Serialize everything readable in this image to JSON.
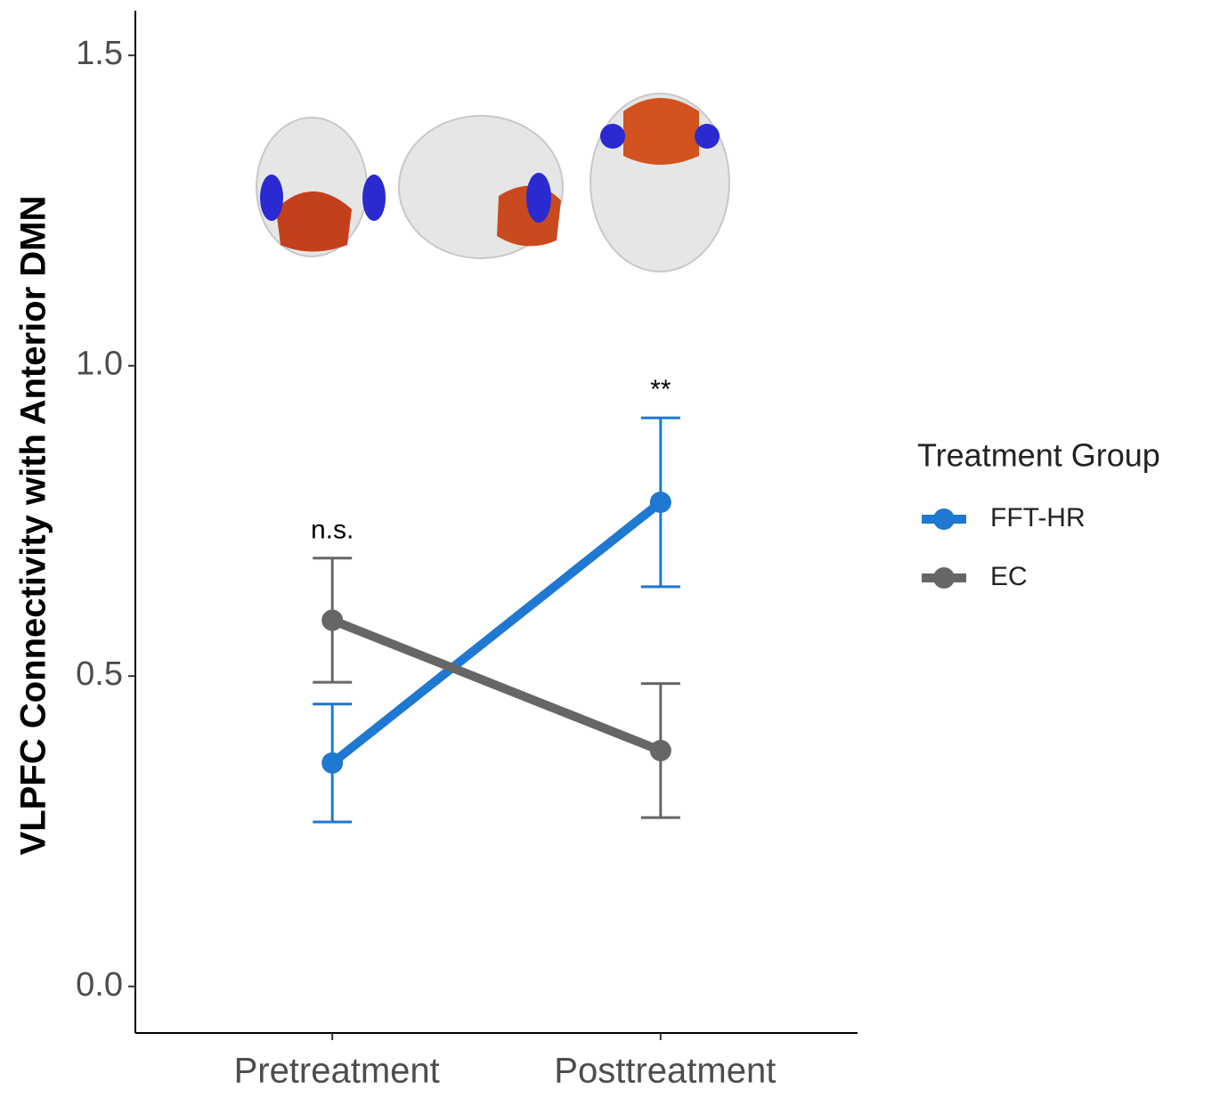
{
  "chart_data": {
    "type": "line",
    "ylabel": "VLPFC Connectivity with Anterior DMN",
    "categories": [
      "Pretreatment",
      "Posttreatment"
    ],
    "series": [
      {
        "name": "FFT-HR",
        "color": "#1f78d1",
        "values": [
          0.36,
          0.78
        ],
        "errors": [
          0.095,
          0.136
        ]
      },
      {
        "name": "EC",
        "color": "#666666",
        "values": [
          0.59,
          0.38
        ],
        "errors": [
          0.1,
          0.108
        ]
      }
    ],
    "annotations": [
      "n.s.",
      "**"
    ],
    "ylim": [
      -0.075,
      1.572
    ],
    "yticks": [
      {
        "value": 0,
        "label": "0.0"
      },
      0.5,
      {
        "value": 1,
        "label": "1.0"
      },
      1.5
    ],
    "legend_title": "Treatment Group",
    "legend": "right"
  }
}
